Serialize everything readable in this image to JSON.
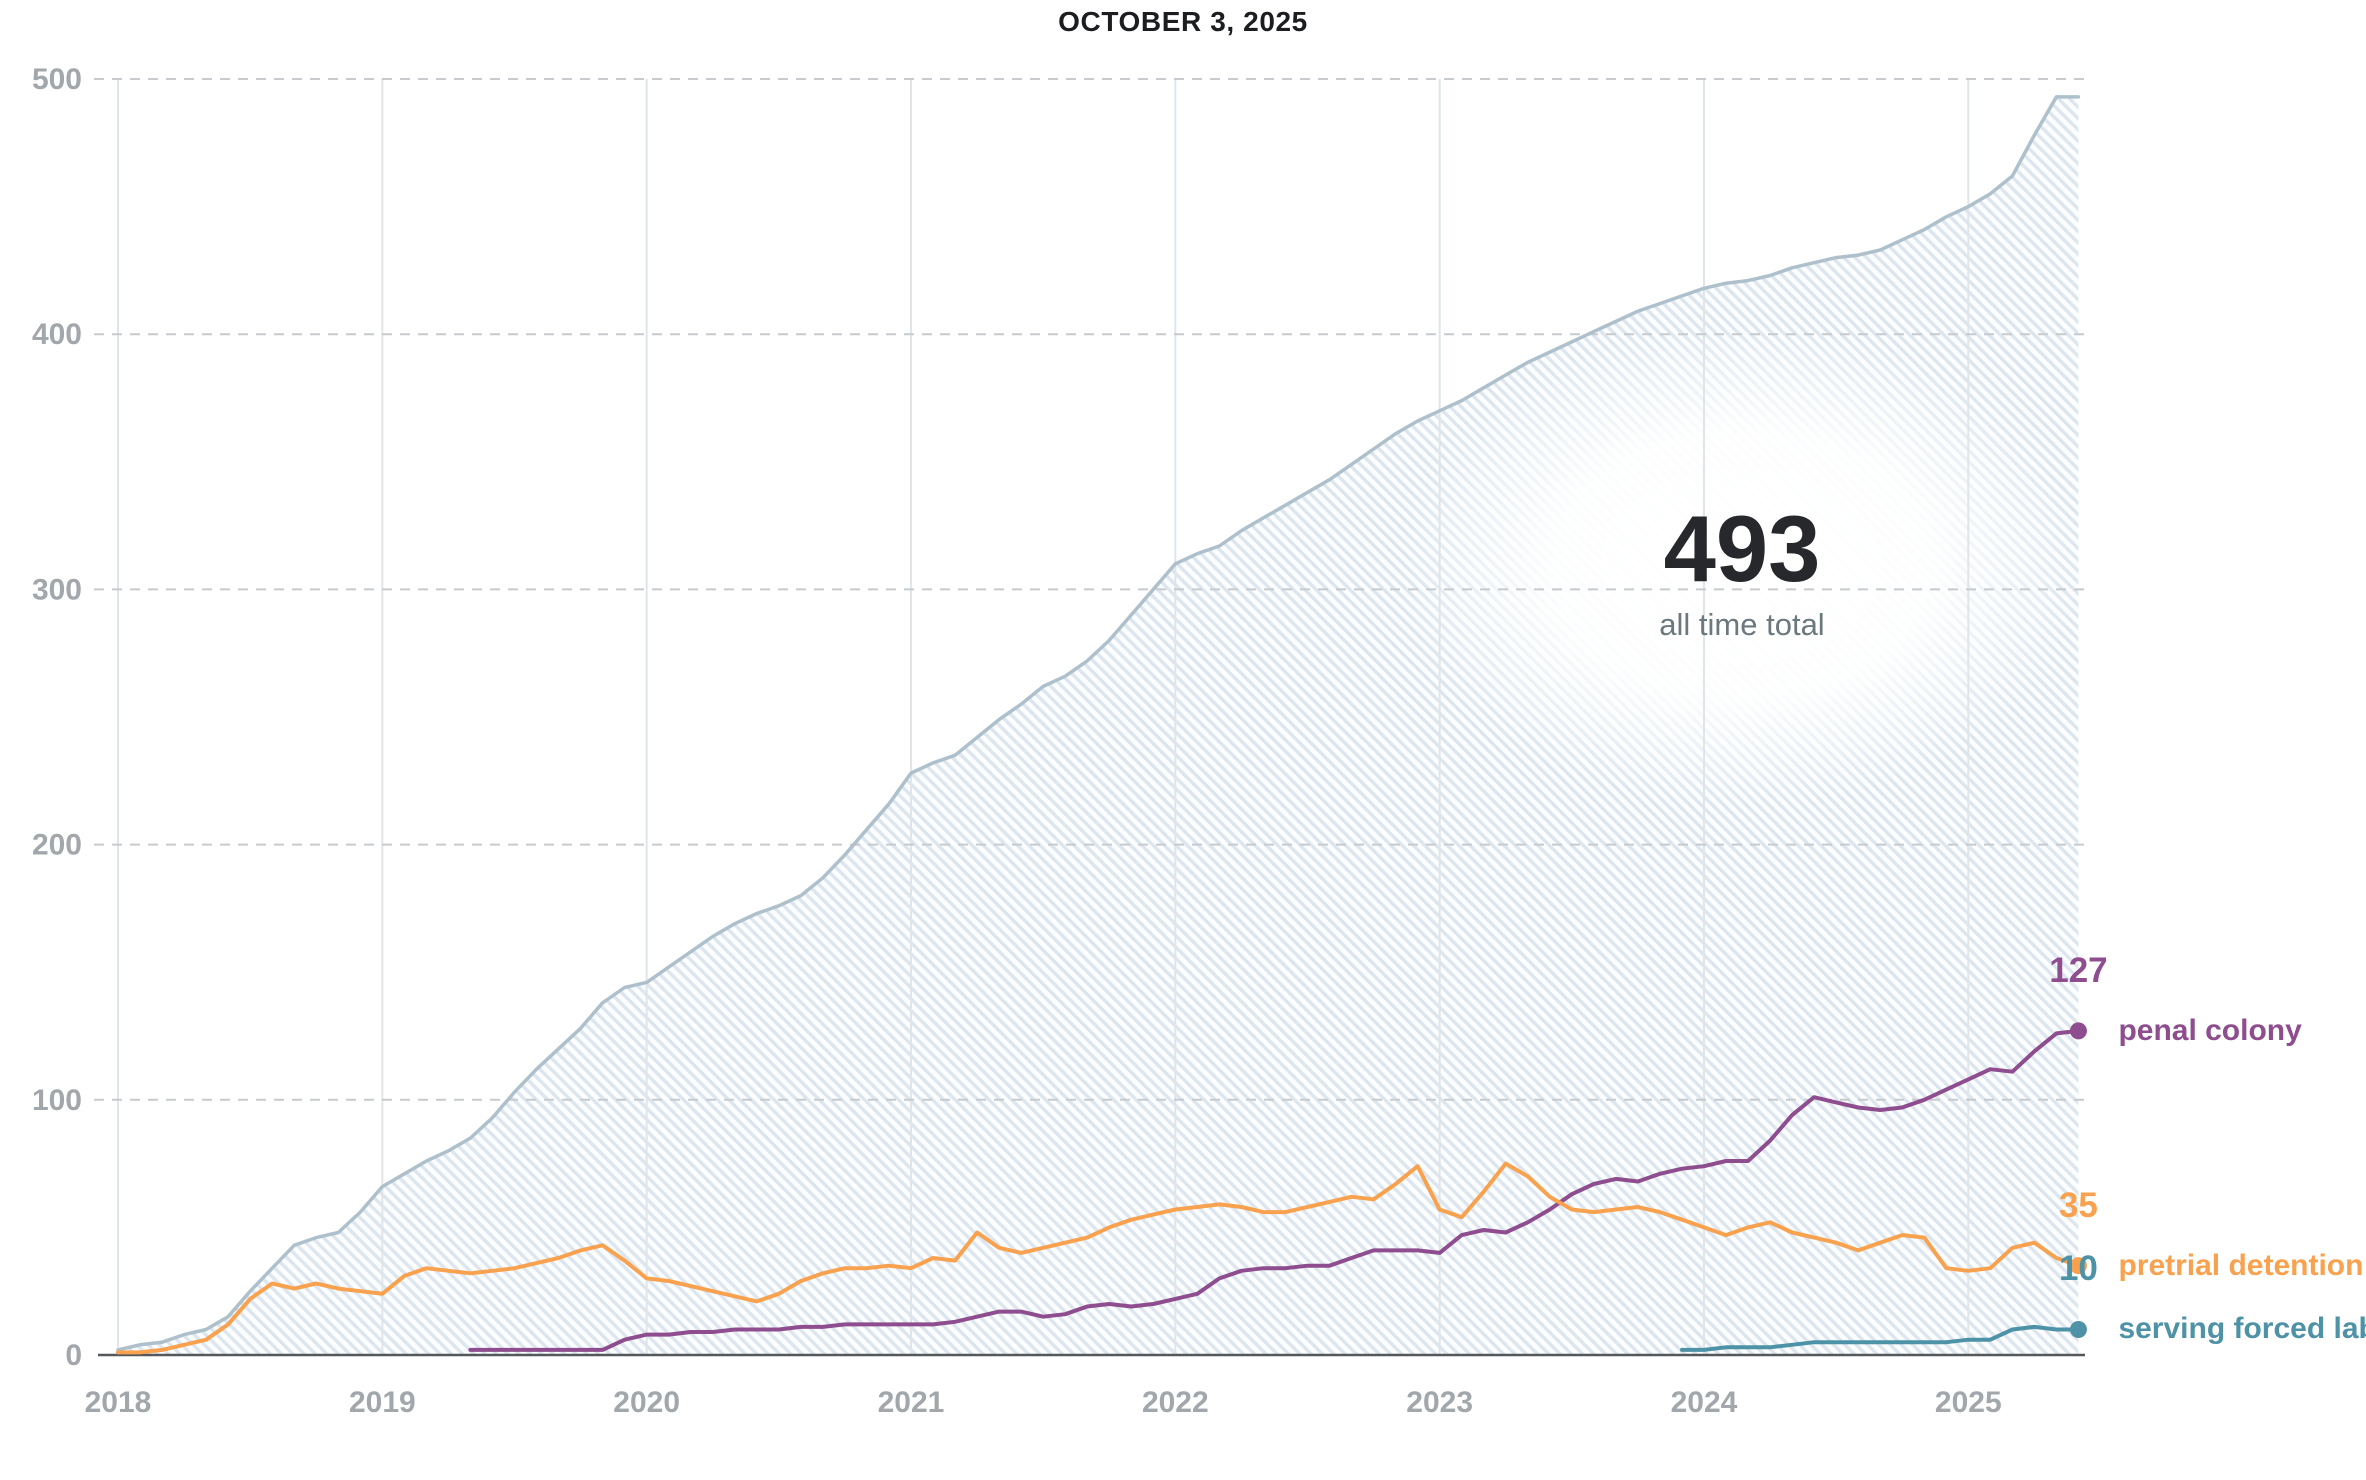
{
  "title": "OCTOBER 3, 2025",
  "stat": {
    "value": "493",
    "caption": "all time total"
  },
  "chart_data": {
    "type": "line",
    "title": "OCTOBER 3, 2025",
    "x_unit": "month",
    "x_start": "2018-01",
    "x_end": "2025-06",
    "x_ticks": [
      2018,
      2019,
      2020,
      2021,
      2022,
      2023,
      2024,
      2025
    ],
    "y_ticks": [
      0,
      100,
      200,
      300,
      400,
      500
    ],
    "y_domain": [
      0,
      500
    ],
    "grid": {
      "horizontal": "dashed",
      "vertical": "solid"
    },
    "legend_position": "right-end",
    "colors": {
      "total_line": "#adc0cb",
      "hatch_stripe": "#dde6ee",
      "axis": "#54585b",
      "grid_dashed": "#c7cbcf",
      "grid_vertical": "#dfe5e8",
      "tick_label": "#a2a7ab"
    },
    "series": [
      {
        "key": "total",
        "name": "all time total",
        "color": "#adc0cb",
        "fill": "hatch",
        "end_label": null,
        "values": [
          2,
          4,
          5,
          8,
          10,
          15,
          25,
          34,
          43,
          46,
          48,
          56,
          66,
          71,
          76,
          80,
          85,
          93,
          103,
          112,
          120,
          128,
          138,
          144,
          146,
          152,
          158,
          164,
          169,
          173,
          176,
          180,
          187,
          196,
          206,
          216,
          228,
          232,
          235,
          242,
          249,
          255,
          262,
          266,
          272,
          280,
          290,
          300,
          310,
          314,
          317,
          323,
          328,
          333,
          338,
          343,
          349,
          355,
          361,
          366,
          370,
          374,
          379,
          384,
          389,
          393,
          397,
          401,
          405,
          409,
          412,
          415,
          418,
          420,
          421,
          423,
          426,
          428,
          430,
          431,
          433,
          437,
          441,
          446,
          450,
          455,
          462,
          478,
          493,
          493
        ]
      },
      {
        "key": "penal_colony",
        "name": "penal colony",
        "color": "#8e4d8e",
        "fill": null,
        "end_label": "127",
        "values": [
          null,
          null,
          null,
          null,
          null,
          null,
          null,
          null,
          null,
          null,
          null,
          null,
          null,
          null,
          null,
          null,
          2,
          2,
          2,
          2,
          2,
          2,
          2,
          6,
          8,
          8,
          9,
          9,
          10,
          10,
          10,
          11,
          11,
          12,
          12,
          12,
          12,
          12,
          13,
          15,
          17,
          17,
          15,
          16,
          19,
          20,
          19,
          20,
          22,
          24,
          30,
          33,
          34,
          34,
          35,
          35,
          38,
          41,
          41,
          41,
          40,
          47,
          49,
          48,
          52,
          57,
          63,
          67,
          69,
          68,
          71,
          73,
          74,
          76,
          76,
          84,
          94,
          101,
          99,
          97,
          96,
          97,
          100,
          104,
          108,
          112,
          111,
          119,
          126,
          127
        ]
      },
      {
        "key": "pretrial_detention",
        "name": "pretrial detention",
        "color": "#f8a14e",
        "fill": null,
        "end_label": "35",
        "values": [
          1,
          1,
          2,
          4,
          6,
          12,
          22,
          28,
          26,
          28,
          26,
          25,
          24,
          31,
          34,
          33,
          32,
          33,
          34,
          36,
          38,
          41,
          43,
          37,
          30,
          29,
          27,
          25,
          23,
          21,
          24,
          29,
          32,
          34,
          34,
          35,
          34,
          38,
          37,
          48,
          42,
          40,
          42,
          44,
          46,
          50,
          53,
          55,
          57,
          58,
          59,
          58,
          56,
          56,
          58,
          60,
          62,
          61,
          67,
          74,
          57,
          54,
          64,
          75,
          70,
          62,
          57,
          56,
          57,
          58,
          56,
          53,
          50,
          47,
          50,
          52,
          48,
          46,
          44,
          41,
          44,
          47,
          46,
          34,
          33,
          34,
          42,
          44,
          38,
          35
        ]
      },
      {
        "key": "serving_forced_labor",
        "name": "serving forced labor",
        "color": "#4d92a6",
        "fill": null,
        "end_label": "10",
        "values": [
          null,
          null,
          null,
          null,
          null,
          null,
          null,
          null,
          null,
          null,
          null,
          null,
          null,
          null,
          null,
          null,
          null,
          null,
          null,
          null,
          null,
          null,
          null,
          null,
          null,
          null,
          null,
          null,
          null,
          null,
          null,
          null,
          null,
          null,
          null,
          null,
          null,
          null,
          null,
          null,
          null,
          null,
          null,
          null,
          null,
          null,
          null,
          null,
          null,
          null,
          null,
          null,
          null,
          null,
          null,
          null,
          null,
          null,
          null,
          null,
          null,
          null,
          null,
          null,
          null,
          null,
          null,
          null,
          null,
          null,
          null,
          2,
          2,
          3,
          3,
          3,
          4,
          5,
          5,
          5,
          5,
          5,
          5,
          5,
          6,
          6,
          10,
          11,
          10,
          10
        ]
      }
    ]
  }
}
